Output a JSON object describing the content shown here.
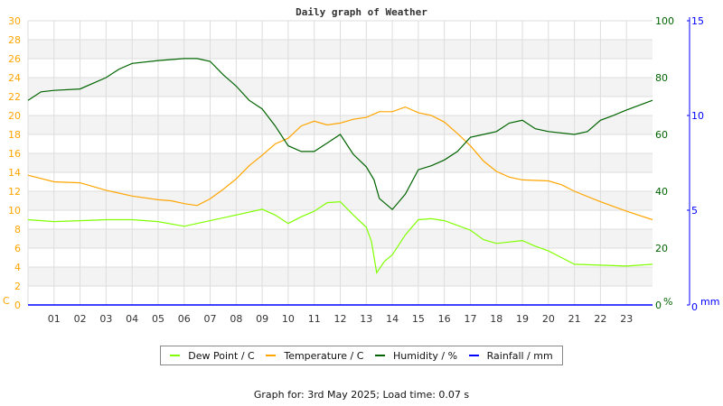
{
  "chart_data": {
    "type": "line",
    "title": "Daily graph of Weather",
    "x_ticks": [
      "01",
      "02",
      "03",
      "04",
      "05",
      "06",
      "07",
      "08",
      "09",
      "10",
      "11",
      "12",
      "13",
      "14",
      "15",
      "16",
      "17",
      "18",
      "19",
      "20",
      "21",
      "22",
      "23"
    ],
    "xlim": [
      0,
      24
    ],
    "grid": true,
    "axes": {
      "left": {
        "label": "C",
        "ylim": [
          0,
          30
        ],
        "ticks": [
          0,
          2,
          4,
          6,
          8,
          10,
          12,
          14,
          16,
          18,
          20,
          22,
          24,
          26,
          28,
          30
        ],
        "color": "#ffa500"
      },
      "right": {
        "label": "%",
        "ylim": [
          0,
          100
        ],
        "ticks": [
          0,
          20,
          40,
          60,
          80,
          100
        ],
        "color": "#006400"
      },
      "rain": {
        "label": "mm",
        "ylim": [
          0,
          15
        ],
        "ticks": [
          0,
          5,
          10,
          15
        ],
        "color": "#0000ff"
      }
    },
    "series": [
      {
        "name": "Dew Point / C",
        "axis": "left",
        "color": "#80ff00",
        "x": [
          0,
          1,
          2,
          3,
          4,
          5,
          6,
          6.5,
          7,
          8,
          9,
          9.5,
          10,
          10.5,
          11,
          11.5,
          12,
          12.5,
          13,
          13.2,
          13.4,
          13.7,
          14,
          14.5,
          15,
          15.5,
          16,
          16.5,
          17,
          17.5,
          18,
          19,
          19.5,
          20,
          20.5,
          21,
          22,
          23,
          24
        ],
        "y": [
          9.0,
          8.8,
          8.9,
          9.0,
          9.0,
          8.8,
          8.3,
          8.6,
          8.9,
          9.5,
          10.1,
          9.5,
          8.6,
          9.3,
          9.9,
          10.8,
          10.9,
          9.5,
          8.2,
          6.7,
          3.4,
          4.6,
          5.3,
          7.4,
          9.0,
          9.1,
          8.9,
          8.4,
          7.9,
          6.9,
          6.5,
          6.8,
          6.2,
          5.7,
          5.0,
          4.3,
          4.2,
          4.1,
          4.3
        ]
      },
      {
        "name": "Temperature / C",
        "axis": "left",
        "color": "#ffa500",
        "x": [
          0,
          1,
          2,
          3,
          4,
          5,
          5.5,
          6,
          6.5,
          7,
          7.5,
          8,
          8.5,
          9,
          9.5,
          10,
          10.5,
          11,
          11.5,
          12,
          12.5,
          13,
          13.5,
          14,
          14.5,
          15,
          15.5,
          16,
          16.5,
          17,
          17.5,
          18,
          18.5,
          19,
          20,
          20.5,
          21,
          22,
          23,
          24
        ],
        "y": [
          13.7,
          13.0,
          12.9,
          12.1,
          11.5,
          11.1,
          11.0,
          10.7,
          10.5,
          11.2,
          12.2,
          13.3,
          14.7,
          15.8,
          17.0,
          17.6,
          18.9,
          19.4,
          19.0,
          19.2,
          19.6,
          19.8,
          20.4,
          20.4,
          20.9,
          20.3,
          20.0,
          19.3,
          18.1,
          16.8,
          15.2,
          14.1,
          13.5,
          13.2,
          13.1,
          12.7,
          12.0,
          10.9,
          9.9,
          9.0
        ]
      },
      {
        "name": "Humidity / %",
        "axis": "right",
        "color": "#006400",
        "x": [
          0,
          0.5,
          1,
          2,
          3,
          3.5,
          4,
          5,
          6,
          6.5,
          7,
          7.5,
          8,
          8.5,
          9,
          9.5,
          10,
          10.5,
          11,
          11.5,
          12,
          12.5,
          13,
          13.3,
          13.5,
          14,
          14.5,
          15,
          15.5,
          16,
          16.5,
          17,
          17.5,
          18,
          18.5,
          19,
          19.5,
          20,
          21,
          21.5,
          22,
          22.5,
          23,
          24
        ],
        "y": [
          72,
          75,
          75.5,
          76,
          80,
          83,
          85,
          86,
          86.7,
          86.7,
          85.7,
          81,
          77,
          72,
          69,
          63,
          56,
          54,
          54,
          57,
          60,
          53,
          48.6,
          44,
          37.5,
          33.6,
          39,
          47.6,
          49,
          51,
          54,
          59,
          60,
          61,
          64,
          65,
          62,
          61,
          60,
          61,
          65,
          66.7,
          68.6,
          72
        ]
      },
      {
        "name": "Rainfall / mm",
        "axis": "rain",
        "color": "#0000ff",
        "x": [
          0,
          24
        ],
        "y": [
          0,
          0
        ]
      }
    ]
  },
  "footer": "Graph for: 3rd May 2025; Load time: 0.07 s"
}
